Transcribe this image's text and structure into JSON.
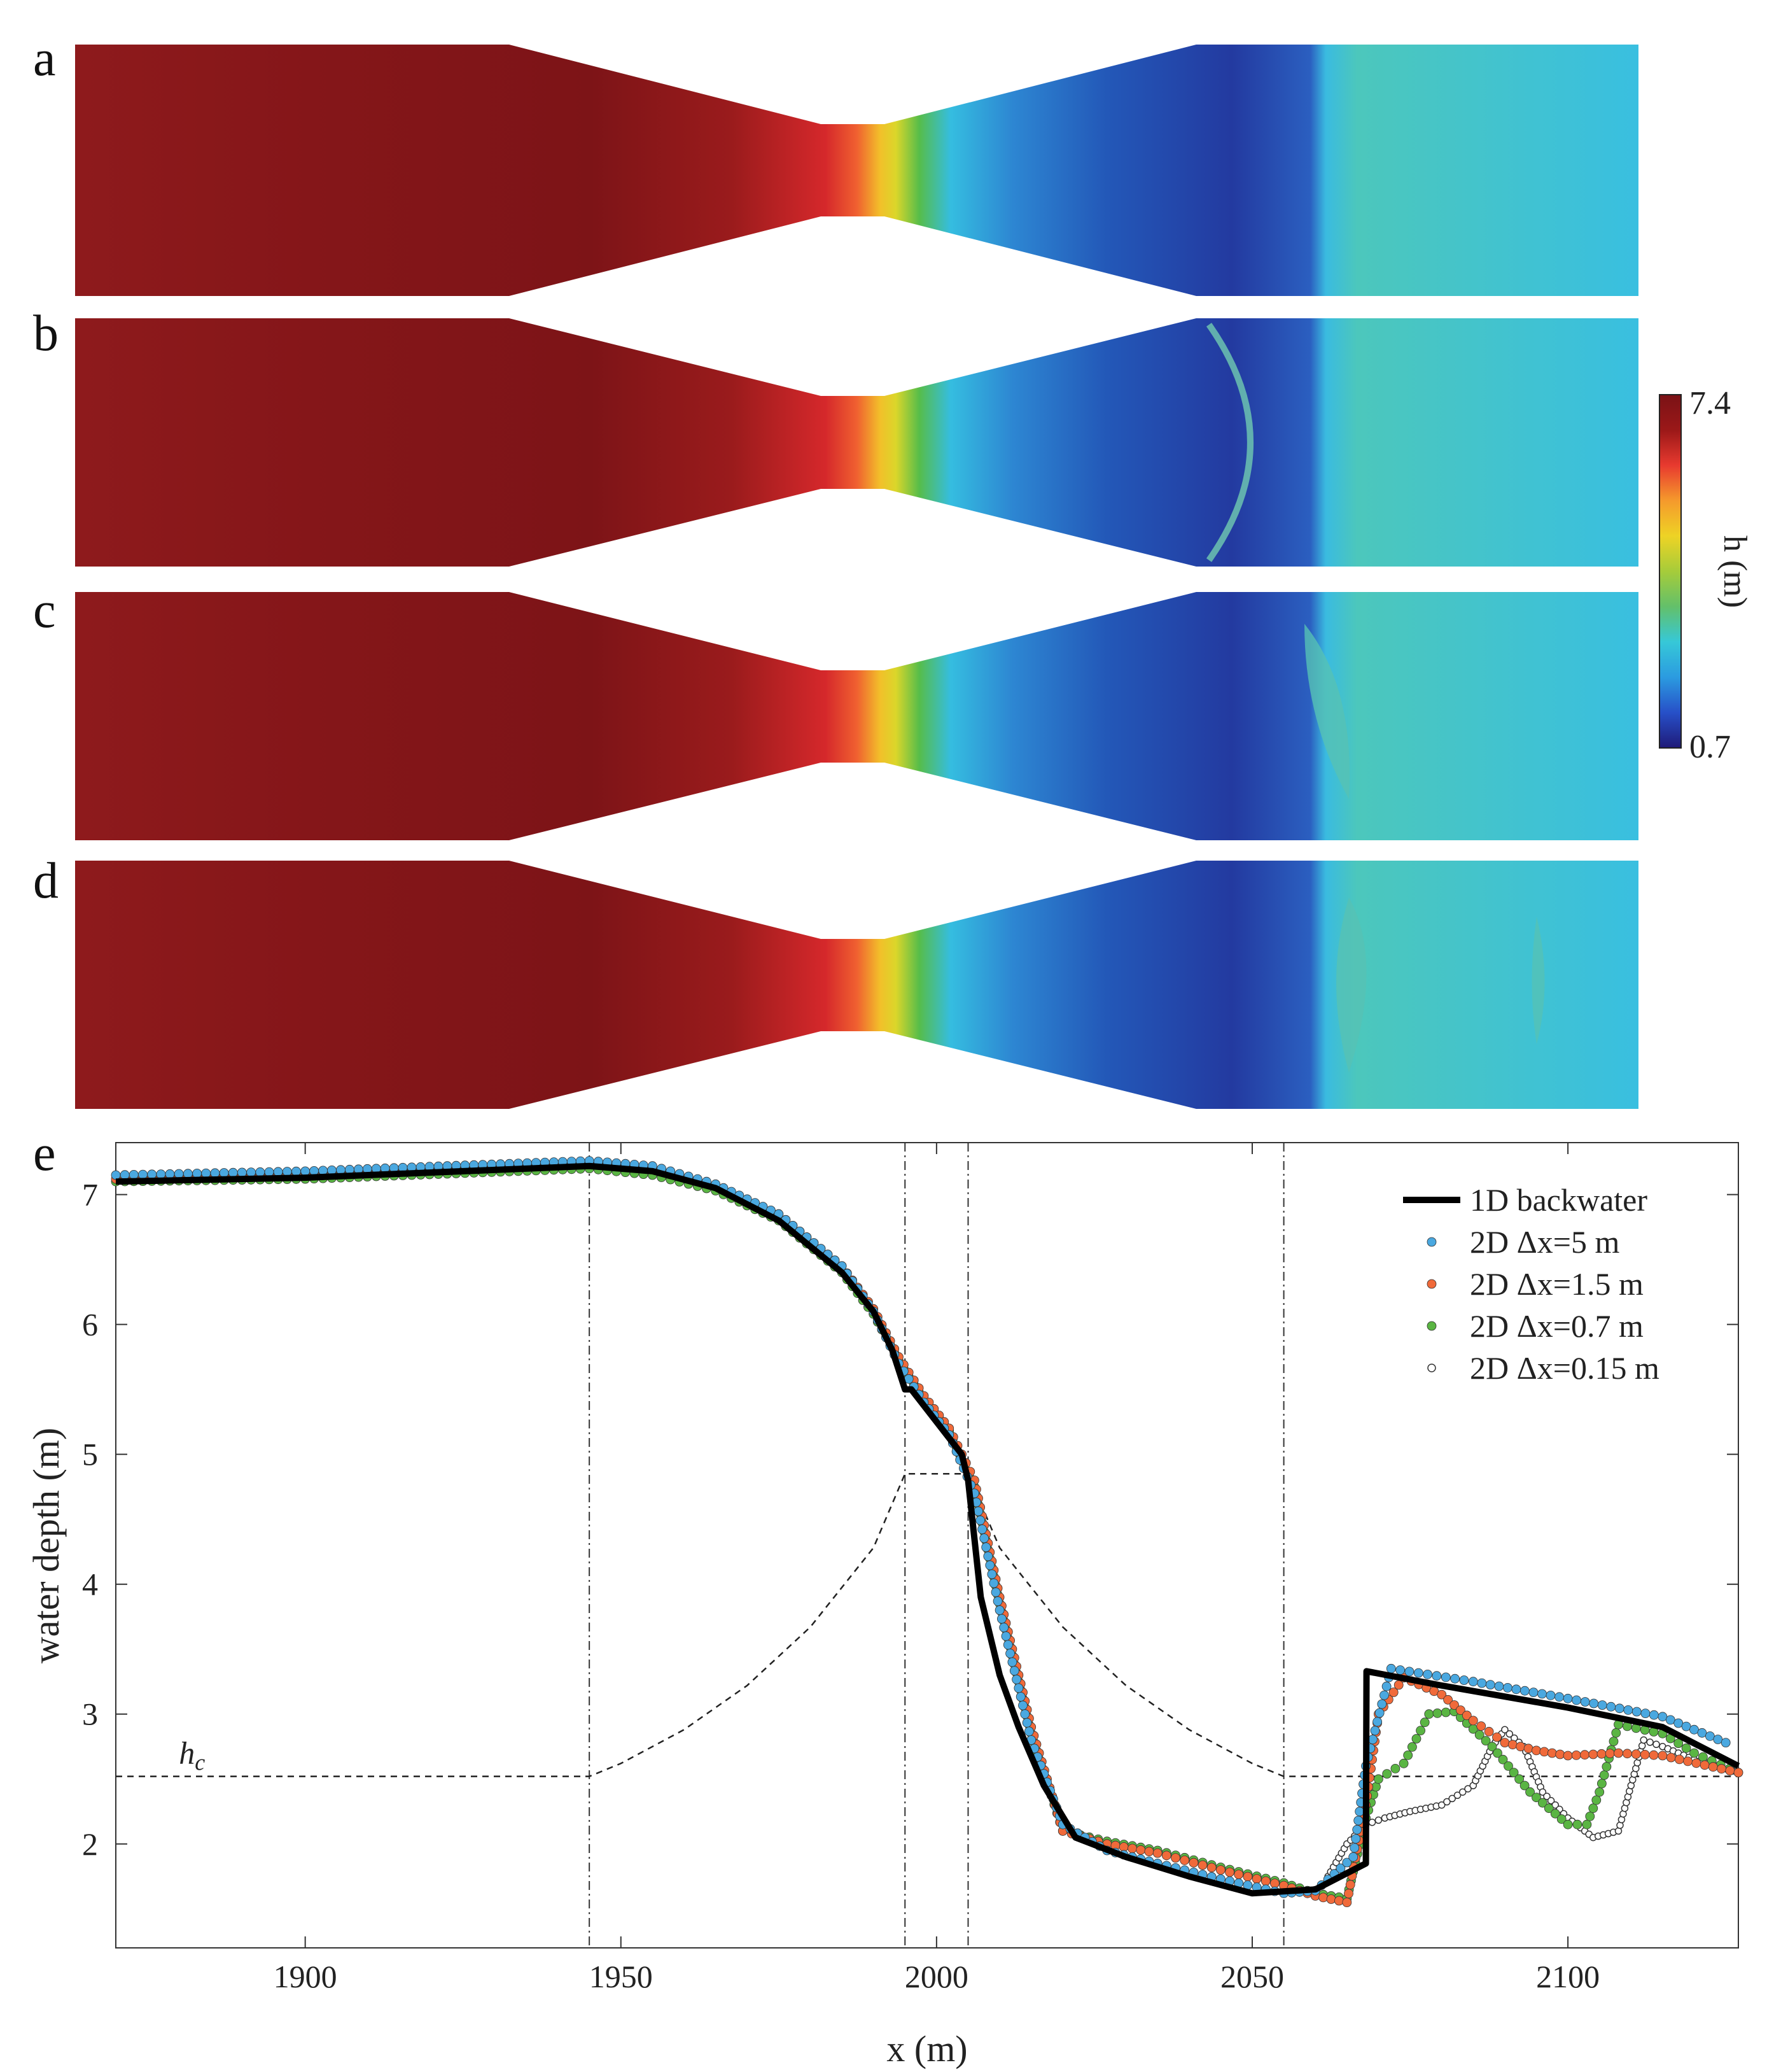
{
  "figure": {
    "panels": [
      {
        "letter": "a",
        "shock_x": null
      },
      {
        "letter": "b",
        "shock_x": 2043
      },
      {
        "letter": "c",
        "shock_x": 2060
      },
      {
        "letter": "d",
        "shock_x": 2065
      }
    ],
    "colorbar": {
      "label": "h (m)",
      "max_label": "7.4",
      "min_label": "0.7",
      "min": 0.7,
      "max": 7.4,
      "stops": [
        "#1f1a78",
        "#2750c8",
        "#2b9be0",
        "#36c8d8",
        "#63c06a",
        "#a6cc3a",
        "#eed325",
        "#f59a2c",
        "#e83a2f",
        "#9b1818",
        "#7a1216"
      ]
    },
    "panel_e_letter": "e"
  },
  "chart_data": {
    "type": "line",
    "xlabel": "x (m)",
    "ylabel": "water depth (m)",
    "xlim": [
      1870,
      2127
    ],
    "ylim": [
      1.2,
      7.4
    ],
    "xticks": [
      1900,
      1950,
      2000,
      2050,
      2100
    ],
    "yticks": [
      2,
      3,
      4,
      5,
      6,
      7
    ],
    "xtick_labels": [
      "1900",
      "1950",
      "2000",
      "2050",
      "2100"
    ],
    "ytick_labels": [
      "2",
      "3",
      "4",
      "5",
      "6",
      "7"
    ],
    "grid": false,
    "legend_position": "top-right",
    "legend": [
      "1D backwater",
      "2D Δx=5 m",
      "2D Δx=1.5 m",
      "2D Δx=0.7 m",
      "2D Δx=0.15 m"
    ],
    "annotation": {
      "text": "h",
      "subscript": "c",
      "x": 1880,
      "y": 2.62
    },
    "vertical_lines_x": [
      1945,
      1995,
      2005,
      2055
    ],
    "critical_depth_line": {
      "x": [
        1870,
        1945,
        1950,
        1960,
        1970,
        1980,
        1990,
        1995,
        2005,
        2010,
        2020,
        2030,
        2040,
        2050,
        2055,
        2127
      ],
      "y": [
        2.52,
        2.52,
        2.62,
        2.88,
        3.22,
        3.67,
        4.28,
        4.85,
        4.85,
        4.28,
        3.67,
        3.22,
        2.88,
        2.62,
        2.52,
        2.52
      ]
    },
    "series": [
      {
        "name": "1D backwater",
        "color": "#000000",
        "style": "line",
        "x": [
          1870,
          1900,
          1945,
          1955,
          1965,
          1975,
          1985,
          1990,
          1993,
          1995,
          1996,
          2000,
          2004,
          2005,
          2007,
          2010,
          2013,
          2017,
          2022,
          2030,
          2040,
          2050,
          2060,
          2068,
          2068.1,
          2080,
          2100,
          2115,
          2127
        ],
        "y": [
          7.1,
          7.13,
          7.22,
          7.18,
          7.05,
          6.8,
          6.4,
          6.1,
          5.8,
          5.5,
          5.5,
          5.25,
          5.0,
          4.8,
          3.9,
          3.3,
          2.9,
          2.45,
          2.05,
          1.9,
          1.75,
          1.62,
          1.65,
          1.85,
          3.33,
          3.22,
          3.05,
          2.9,
          2.6
        ]
      },
      {
        "name": "2D Δx=5 m",
        "color": "#4aa8e0",
        "style": "dot",
        "x": [
          1870,
          1900,
          1945,
          1955,
          1965,
          1975,
          1985,
          1990,
          1994,
          1998,
          2002,
          2006,
          2010,
          2015,
          2020,
          2027,
          2035,
          2045,
          2055,
          2060,
          2066,
          2068,
          2072,
          2085,
          2100,
          2115,
          2125
        ],
        "y": [
          7.15,
          7.18,
          7.26,
          7.22,
          7.08,
          6.85,
          6.45,
          6.1,
          5.7,
          5.4,
          5.15,
          4.7,
          3.8,
          2.8,
          2.15,
          1.95,
          1.85,
          1.73,
          1.62,
          1.64,
          1.9,
          2.6,
          3.35,
          3.25,
          3.12,
          2.98,
          2.78
        ]
      },
      {
        "name": "2D Δx=1.5 m",
        "color": "#f06a3a",
        "style": "dot",
        "x": [
          1870,
          1900,
          1945,
          1955,
          1965,
          1975,
          1985,
          1990,
          1994,
          1998,
          2002,
          2006,
          2010,
          2015,
          2020,
          2027,
          2035,
          2045,
          2055,
          2060,
          2065,
          2068,
          2070,
          2074,
          2080,
          2085,
          2090,
          2095,
          2100,
          2108,
          2115,
          2127
        ],
        "y": [
          7.12,
          7.17,
          7.25,
          7.21,
          7.07,
          6.85,
          6.45,
          6.12,
          5.75,
          5.45,
          5.2,
          4.8,
          3.9,
          2.9,
          2.1,
          2.0,
          1.93,
          1.8,
          1.68,
          1.6,
          1.55,
          2.3,
          3.0,
          3.28,
          3.15,
          2.95,
          2.78,
          2.72,
          2.68,
          2.7,
          2.68,
          2.55
        ]
      },
      {
        "name": "2D Δx=0.7 m",
        "color": "#5ab543",
        "style": "dot",
        "x": [
          1870,
          1900,
          1945,
          1955,
          1965,
          1975,
          1985,
          1990,
          1994,
          1998,
          2002,
          2006,
          2010,
          2015,
          2020,
          2027,
          2035,
          2045,
          2055,
          2060,
          2065,
          2068,
          2070,
          2074,
          2078,
          2082,
          2088,
          2094,
          2100,
          2103,
          2105,
          2108,
          2115,
          2120,
          2127
        ],
        "y": [
          7.1,
          7.12,
          7.2,
          7.15,
          7.03,
          6.8,
          6.4,
          6.08,
          5.72,
          5.42,
          5.18,
          4.75,
          3.85,
          2.85,
          2.1,
          2.02,
          1.95,
          1.82,
          1.7,
          1.62,
          1.58,
          2.2,
          2.5,
          2.62,
          3.0,
          3.02,
          2.75,
          2.4,
          2.15,
          2.15,
          2.4,
          2.92,
          2.85,
          2.7,
          2.55
        ]
      },
      {
        "name": "2D Δx=0.15 m",
        "color": "#ffffff",
        "style": "circle",
        "x": [
          2062,
          2065,
          2068,
          2071,
          2075,
          2080,
          2085,
          2088,
          2090,
          2093,
          2096,
          2100,
          2104,
          2108,
          2112,
          2115,
          2120,
          2127
        ],
        "y": [
          1.75,
          2.0,
          2.15,
          2.2,
          2.25,
          2.3,
          2.45,
          2.75,
          2.88,
          2.75,
          2.4,
          2.2,
          2.05,
          2.1,
          2.8,
          2.75,
          2.65,
          2.55
        ]
      }
    ]
  }
}
